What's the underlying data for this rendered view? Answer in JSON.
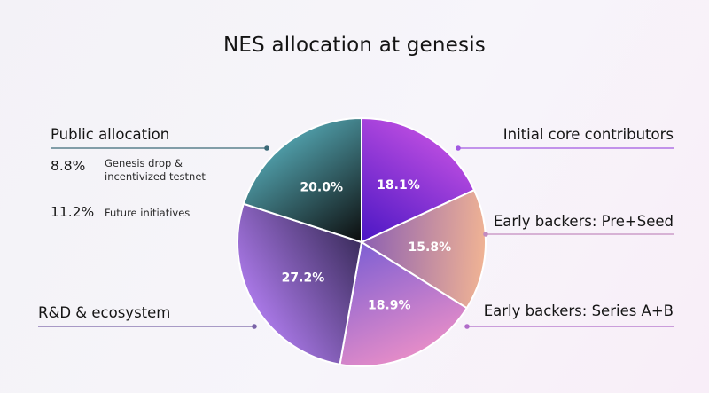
{
  "chart_data": {
    "type": "pie",
    "title": "NES allocation at genesis",
    "slices": [
      {
        "name": "Initial core contributors",
        "value": 18.1,
        "label": "18.1%",
        "colors": [
          "#4a16c4",
          "#b64adf"
        ]
      },
      {
        "name": "Early backers: Pre+Seed",
        "value": 15.8,
        "label": "15.8%",
        "colors": [
          "#8c5fb2",
          "#f0b394"
        ]
      },
      {
        "name": "Early backers: Series A+B",
        "value": 18.9,
        "label": "18.9%",
        "colors": [
          "#7e5fd3",
          "#e48cc8"
        ]
      },
      {
        "name": "R&D & ecosystem",
        "value": 27.2,
        "label": "27.2%",
        "colors": [
          "#3c2d5e",
          "#a978e6"
        ]
      },
      {
        "name": "Public allocation",
        "value": 20.0,
        "label": "20.0%",
        "colors": [
          "#0c0c0c",
          "#4e9aa5"
        ]
      }
    ],
    "sub_breakdown": {
      "parent": "Public allocation",
      "items": [
        {
          "value": 8.8,
          "label": "8.8%",
          "desc": "Genesis drop & incentivized testnet"
        },
        {
          "value": 11.2,
          "label": "11.2%",
          "desc": "Future initiatives"
        }
      ]
    }
  }
}
